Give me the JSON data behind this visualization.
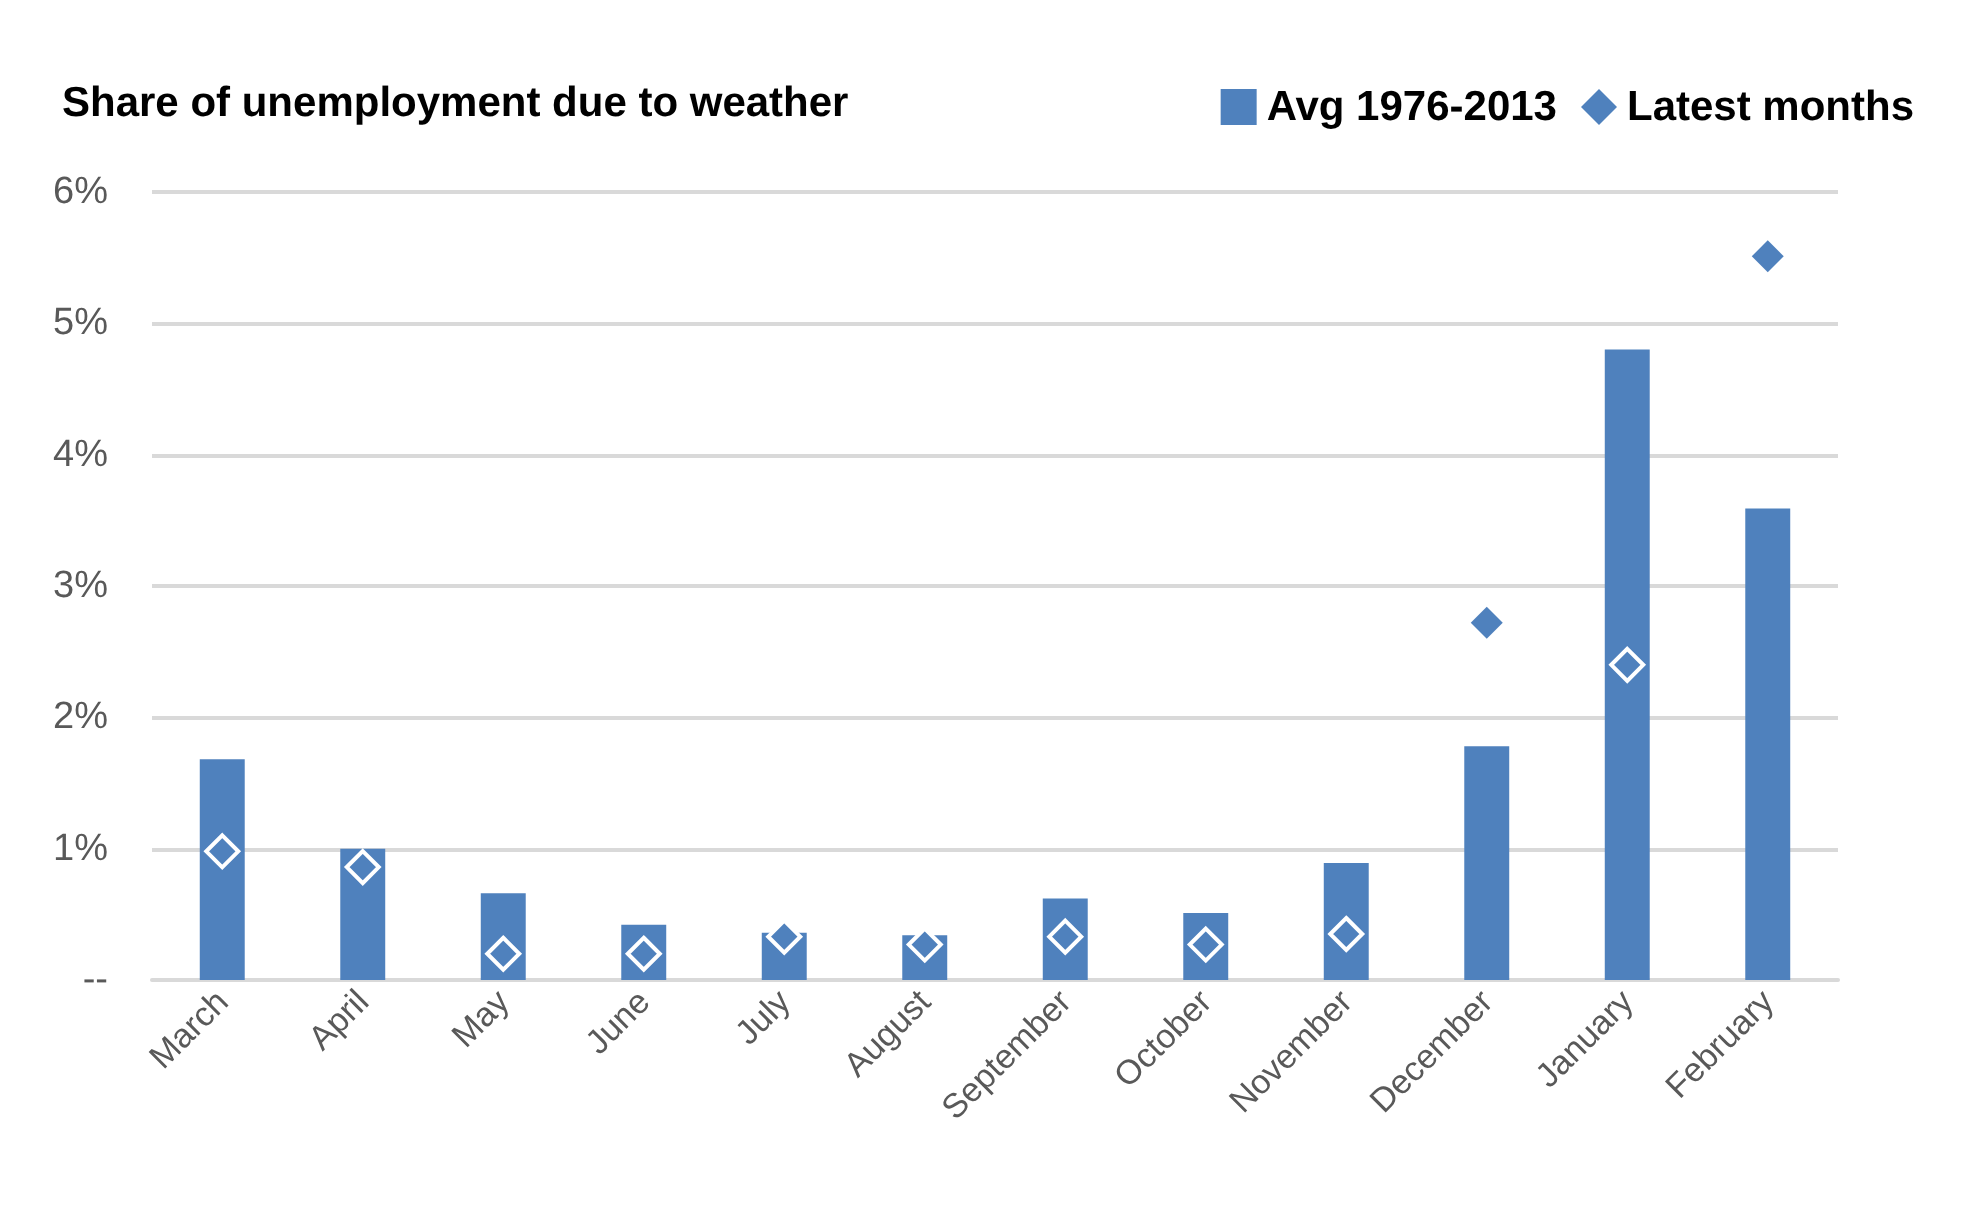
{
  "chart_data": {
    "type": "bar",
    "title": "Share of unemployment due to weather",
    "categories": [
      "March",
      "April",
      "May",
      "June",
      "July",
      "August",
      "September",
      "October",
      "November",
      "December",
      "January",
      "February"
    ],
    "series": [
      {
        "name": "Avg 1976-2013",
        "color": "#4f81bd",
        "values": [
          1.68,
          1.0,
          0.66,
          0.42,
          0.36,
          0.34,
          0.62,
          0.51,
          0.89,
          1.78,
          4.8,
          3.59
        ]
      },
      {
        "name": "Latest months",
        "type": "scatter",
        "color": "#4f81bd",
        "values": [
          0.98,
          0.86,
          0.2,
          0.2,
          0.33,
          0.27,
          0.33,
          0.27,
          0.35,
          2.72,
          2.4,
          5.51
        ]
      }
    ],
    "ylim": [
      0,
      6
    ],
    "yticks": [
      {
        "value": 0,
        "label": "--"
      },
      {
        "value": 1,
        "label": "1%"
      },
      {
        "value": 2,
        "label": "2%"
      },
      {
        "value": 3,
        "label": "3%"
      },
      {
        "value": 4,
        "label": "4%"
      },
      {
        "value": 5,
        "label": "5%"
      },
      {
        "value": 6,
        "label": "6%"
      }
    ],
    "grid": "y",
    "legend": "top right",
    "marker": "diamond"
  }
}
